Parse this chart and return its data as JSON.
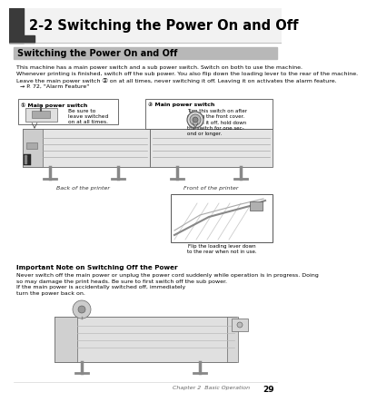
{
  "page_bg": "#ffffff",
  "header_title": "2-2 Switching the Power On and Off",
  "header_title_fontsize": 10.5,
  "subheader_bg": "#b8b8b8",
  "subheader_text": "Switching the Power On and Off",
  "subheader_fontsize": 7,
  "body_text_1": "This machine has a main power switch and a sub power switch. Switch on both to use the machine.\nWhenever printing is finished, switch off the sub power. You also flip down the loading lever to the rear of the machine.\nLeave the main power switch ⓐ on at all times, never switching it off. Leaving it on activates the alarm feature.\n  → P. 72, \"Alarm Feature\"",
  "body_fontsize": 4.5,
  "callout1_title": "① Main power switch",
  "callout1_text": "Be sure to\nleave switched\non at all times.",
  "callout2_title": "② Main power switch",
  "callout2_text": "Turn this switch on after\nclosing the front cover.\nTo turn it off, hold down\nthe switch for one sec-\nond or longer.",
  "label_back": "Back of the printer",
  "label_front": "Front of the printer",
  "flipbox_text": "Flip the loading lever down\nto the rear when not in use.",
  "important_title": "Important Note on Switching Off the Power",
  "important_text": "Never switch off the main power or unplug the power cord suddenly while operation is in progress. Doing\nso may damage the print heads. Be sure to first switch off the sub power.\nIf the main power is accidentally switched off, immediately\nturn the power back on.",
  "footer_text": "Chapter 2  Basic Operation",
  "footer_page": "29"
}
